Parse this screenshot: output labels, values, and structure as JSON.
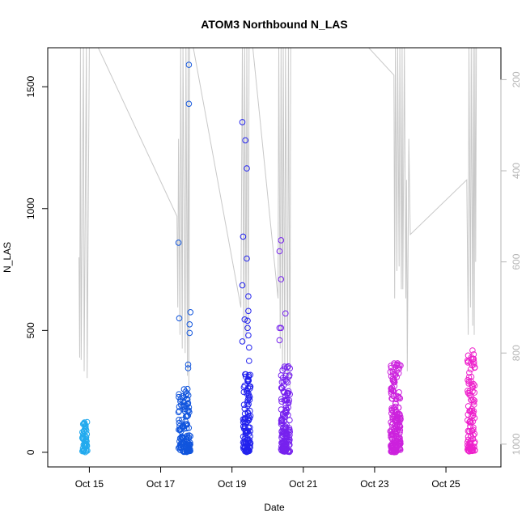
{
  "chart_data": {
    "type": "scatter",
    "title": "ATOM3 Northbound N_LAS",
    "xlabel": "Date",
    "ylabel": "N_LAS",
    "xlim": [
      "2014-10-13T20:00",
      "2014-10-26T13:00"
    ],
    "ylim": [
      -60,
      1660
    ],
    "x_ticks": [
      {
        "date": "2014-10-15",
        "label": "Oct 15"
      },
      {
        "date": "2014-10-17",
        "label": "Oct 17"
      },
      {
        "date": "2014-10-19",
        "label": "Oct 19"
      },
      {
        "date": "2014-10-21",
        "label": "Oct 21"
      },
      {
        "date": "2014-10-23",
        "label": "Oct 23"
      },
      {
        "date": "2014-10-25",
        "label": "Oct 25"
      }
    ],
    "y_ticks": [
      0,
      500,
      1000,
      1500
    ],
    "y2_axis": {
      "reversed": true,
      "ylim": [
        1050,
        130
      ],
      "color": "#b5b5b5",
      "ticks": [
        200,
        400,
        600,
        800,
        1000
      ]
    },
    "grid": false,
    "legend": "none",
    "clusters": [
      {
        "center": "2014-10-14T21:00",
        "spread_hours": 3.5,
        "count": 55,
        "y_max": 125,
        "color": "#22aaee",
        "outliers": []
      },
      {
        "center": "2014-10-17T16:00",
        "spread_hours": 8,
        "count": 130,
        "y_max": 260,
        "color": "#1155dd",
        "outliers": [
          {
            "x": "2014-10-17T12:00",
            "y": 860
          },
          {
            "x": "2014-10-17T12:30",
            "y": 550
          },
          {
            "x": "2014-10-17T19:00",
            "y": 1590
          },
          {
            "x": "2014-10-17T19:00",
            "y": 1430
          },
          {
            "x": "2014-10-17T20:00",
            "y": 575
          },
          {
            "x": "2014-10-17T19:30",
            "y": 525
          },
          {
            "x": "2014-10-17T19:30",
            "y": 490
          },
          {
            "x": "2014-10-17T18:30",
            "y": 360
          },
          {
            "x": "2014-10-17T18:30",
            "y": 345
          }
        ]
      },
      {
        "center": "2014-10-19T10:00",
        "spread_hours": 5,
        "count": 110,
        "y_max": 320,
        "color": "#2222ee",
        "outliers": [
          {
            "x": "2014-10-19T07:00",
            "y": 1355
          },
          {
            "x": "2014-10-19T09:00",
            "y": 1280
          },
          {
            "x": "2014-10-19T10:00",
            "y": 1165
          },
          {
            "x": "2014-10-19T07:30",
            "y": 885
          },
          {
            "x": "2014-10-19T10:00",
            "y": 795
          },
          {
            "x": "2014-10-19T07:00",
            "y": 685
          },
          {
            "x": "2014-10-19T11:00",
            "y": 640
          },
          {
            "x": "2014-10-19T11:00",
            "y": 580
          },
          {
            "x": "2014-10-19T08:30",
            "y": 545
          },
          {
            "x": "2014-10-19T10:30",
            "y": 540
          },
          {
            "x": "2014-10-19T10:30",
            "y": 510
          },
          {
            "x": "2014-10-19T11:00",
            "y": 480
          },
          {
            "x": "2014-10-19T07:00",
            "y": 455
          },
          {
            "x": "2014-10-19T11:30",
            "y": 430
          },
          {
            "x": "2014-10-19T11:30",
            "y": 375
          }
        ]
      },
      {
        "center": "2014-10-20T12:00",
        "spread_hours": 6,
        "count": 150,
        "y_max": 360,
        "color": "#7722ee",
        "outliers": [
          {
            "x": "2014-10-20T09:00",
            "y": 870
          },
          {
            "x": "2014-10-20T08:00",
            "y": 825
          },
          {
            "x": "2014-10-20T09:00",
            "y": 710
          },
          {
            "x": "2014-10-20T12:00",
            "y": 570
          },
          {
            "x": "2014-10-20T08:00",
            "y": 510
          },
          {
            "x": "2014-10-20T09:00",
            "y": 510
          },
          {
            "x": "2014-10-20T08:00",
            "y": 460
          }
        ]
      },
      {
        "center": "2014-10-23T14:00",
        "spread_hours": 7,
        "count": 190,
        "y_max": 365,
        "color": "#cc22dd",
        "outliers": []
      },
      {
        "center": "2014-10-25T17:00",
        "spread_hours": 5,
        "count": 120,
        "y_max": 420,
        "color": "#ee22cc",
        "outliers": []
      }
    ],
    "series_y2": {
      "color": "#c8c8c8",
      "points": [
        {
          "x": "2014-10-14T17:00",
          "y": 590
        },
        {
          "x": "2014-10-14T17:30",
          "y": 810
        },
        {
          "x": "2014-10-14T18:00",
          "y": 130
        },
        {
          "x": "2014-10-14T18:30",
          "y": 815
        },
        {
          "x": "2014-10-14T20:00",
          "y": 130
        },
        {
          "x": "2014-10-14T20:30",
          "y": 840
        },
        {
          "x": "2014-10-14T22:00",
          "y": 130
        },
        {
          "x": "2014-10-14T22:30",
          "y": 855
        },
        {
          "x": "2014-10-15T00:00",
          "y": 130
        },
        {
          "x": "2014-10-15T06:00",
          "y": 130
        },
        {
          "x": "2014-10-17T11:00",
          "y": 500
        },
        {
          "x": "2014-10-17T11:30",
          "y": 700
        },
        {
          "x": "2014-10-17T12:00",
          "y": 330
        },
        {
          "x": "2014-10-17T13:00",
          "y": 760
        },
        {
          "x": "2014-10-17T13:30",
          "y": 130
        },
        {
          "x": "2014-10-17T14:30",
          "y": 790
        },
        {
          "x": "2014-10-17T15:00",
          "y": 130
        },
        {
          "x": "2014-10-17T16:30",
          "y": 800
        },
        {
          "x": "2014-10-17T17:00",
          "y": 130
        },
        {
          "x": "2014-10-17T18:00",
          "y": 850
        },
        {
          "x": "2014-10-17T18:30",
          "y": 130
        },
        {
          "x": "2014-10-17T19:00",
          "y": 880
        },
        {
          "x": "2014-10-17T19:30",
          "y": 130
        },
        {
          "x": "2014-10-17T22:00",
          "y": 130
        },
        {
          "x": "2014-10-19T06:00",
          "y": 700
        },
        {
          "x": "2014-10-19T07:00",
          "y": 130
        },
        {
          "x": "2014-10-19T08:00",
          "y": 780
        },
        {
          "x": "2014-10-19T08:30",
          "y": 130
        },
        {
          "x": "2014-10-19T09:30",
          "y": 770
        },
        {
          "x": "2014-10-19T10:00",
          "y": 130
        },
        {
          "x": "2014-10-19T11:00",
          "y": 750
        },
        {
          "x": "2014-10-19T11:30",
          "y": 130
        },
        {
          "x": "2014-10-19T14:00",
          "y": 130
        },
        {
          "x": "2014-10-20T07:00",
          "y": 680
        },
        {
          "x": "2014-10-20T07:30",
          "y": 130
        },
        {
          "x": "2014-10-20T08:30",
          "y": 790
        },
        {
          "x": "2014-10-20T09:00",
          "y": 130
        },
        {
          "x": "2014-10-20T10:00",
          "y": 830
        },
        {
          "x": "2014-10-20T10:30",
          "y": 130
        },
        {
          "x": "2014-10-20T11:30",
          "y": 850
        },
        {
          "x": "2014-10-20T12:00",
          "y": 130
        },
        {
          "x": "2014-10-20T13:30",
          "y": 860
        },
        {
          "x": "2014-10-20T14:00",
          "y": 130
        },
        {
          "x": "2014-10-20T15:00",
          "y": 880
        },
        {
          "x": "2014-10-20T15:30",
          "y": 130
        },
        {
          "x": "2014-10-20T18:00",
          "y": 130
        },
        {
          "x": "2014-10-22T20:00",
          "y": 130
        },
        {
          "x": "2014-10-23T13:00",
          "y": 190
        },
        {
          "x": "2014-10-23T13:30",
          "y": 680
        },
        {
          "x": "2014-10-23T14:00",
          "y": 130
        },
        {
          "x": "2014-10-23T15:00",
          "y": 620
        },
        {
          "x": "2014-10-23T15:30",
          "y": 130
        },
        {
          "x": "2014-10-23T16:30",
          "y": 610
        },
        {
          "x": "2014-10-23T17:00",
          "y": 130
        },
        {
          "x": "2014-10-23T18:00",
          "y": 660
        },
        {
          "x": "2014-10-23T18:30",
          "y": 130
        },
        {
          "x": "2014-10-23T19:00",
          "y": 660
        },
        {
          "x": "2014-10-23T20:00",
          "y": 130
        },
        {
          "x": "2014-10-23T21:00",
          "y": 680
        },
        {
          "x": "2014-10-23T21:30",
          "y": 420
        },
        {
          "x": "2014-10-23T22:00",
          "y": 840
        },
        {
          "x": "2014-10-23T23:00",
          "y": 330
        },
        {
          "x": "2014-10-24T00:00",
          "y": 540
        },
        {
          "x": "2014-10-25T14:00",
          "y": 420
        },
        {
          "x": "2014-10-25T15:00",
          "y": 760
        },
        {
          "x": "2014-10-25T15:30",
          "y": 130
        },
        {
          "x": "2014-10-25T16:30",
          "y": 700
        },
        {
          "x": "2014-10-25T17:00",
          "y": 130
        },
        {
          "x": "2014-10-25T18:00",
          "y": 740
        },
        {
          "x": "2014-10-25T18:30",
          "y": 130
        },
        {
          "x": "2014-10-25T19:00",
          "y": 760
        },
        {
          "x": "2014-10-25T19:30",
          "y": 130
        },
        {
          "x": "2014-10-25T20:00",
          "y": 600
        },
        {
          "x": "2014-10-25T20:30",
          "y": 130
        }
      ]
    }
  }
}
